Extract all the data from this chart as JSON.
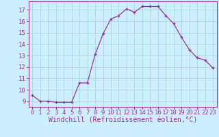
{
  "x": [
    0,
    1,
    2,
    3,
    4,
    5,
    6,
    7,
    8,
    9,
    10,
    11,
    12,
    13,
    14,
    15,
    16,
    17,
    18,
    19,
    20,
    21,
    22,
    23
  ],
  "y": [
    9.5,
    9.0,
    9.0,
    8.9,
    8.9,
    8.9,
    10.6,
    10.6,
    13.1,
    14.9,
    16.2,
    16.5,
    17.1,
    16.8,
    17.3,
    17.3,
    17.3,
    16.5,
    15.8,
    14.6,
    13.5,
    12.8,
    12.6,
    11.9
  ],
  "line_color": "#993399",
  "marker": "+",
  "bg_color": "#cceeff",
  "grid_color": "#aadddd",
  "xlabel": "Windchill (Refroidissement éolien,°C)",
  "ylabel_ticks": [
    9,
    10,
    11,
    12,
    13,
    14,
    15,
    16,
    17
  ],
  "ylim": [
    8.5,
    17.75
  ],
  "xlim": [
    -0.5,
    23.5
  ],
  "xtick_labels": [
    "0",
    "1",
    "2",
    "3",
    "4",
    "5",
    "6",
    "7",
    "8",
    "9",
    "10",
    "11",
    "12",
    "13",
    "14",
    "15",
    "16",
    "17",
    "18",
    "19",
    "20",
    "21",
    "22",
    "23"
  ],
  "font_color": "#993399",
  "tick_fontsize": 6.5,
  "label_fontsize": 7
}
